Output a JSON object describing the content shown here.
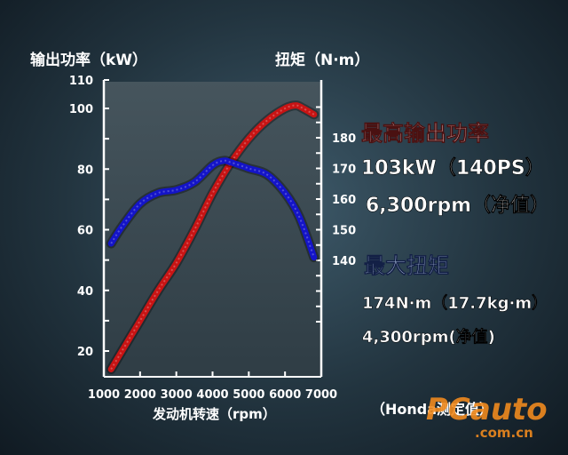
{
  "chart_data": {
    "type": "line",
    "title": "",
    "xlabel": "发动机转速（rpm）",
    "ylabel_left": "输出功率（kW）",
    "ylabel_right": "扭矩（N·m）",
    "xlim": [
      1000,
      7000
    ],
    "ylim_left": [
      10,
      110
    ],
    "ylim_right": [
      120,
      190
    ],
    "x_ticks": [
      1000,
      2000,
      3000,
      4000,
      5000,
      6000,
      7000
    ],
    "y_left_ticks": [
      20,
      40,
      60,
      80,
      100,
      110
    ],
    "y_right_ticks": [
      140,
      150,
      160,
      170,
      180
    ],
    "grid": false,
    "series": [
      {
        "axis": "left",
        "color": "#c81414",
        "x": [
          1200,
          1500,
          2000,
          2500,
          3000,
          3500,
          4000,
          4500,
          5000,
          5500,
          6000,
          6300,
          6500,
          6800
        ],
        "values": [
          14,
          20,
          30,
          40,
          49,
          60,
          72,
          82,
          90,
          96,
          100,
          101,
          100,
          98
        ]
      },
      {
        "axis": "right",
        "color": "#1414c8",
        "x": [
          1200,
          1500,
          2000,
          2500,
          3000,
          3500,
          4000,
          4300,
          4500,
          5000,
          5500,
          6000,
          6400,
          6800
        ],
        "values": [
          145.5,
          151,
          158.5,
          162,
          163,
          165.5,
          171,
          172.5,
          172,
          170,
          168,
          162,
          154,
          141
        ]
      }
    ]
  },
  "specs": {
    "power_heading": "最高输出功率",
    "power_value": "103kW（140PS）",
    "power_rpm": "6,300rpm（净值）",
    "torque_heading": "最大扭矩",
    "torque_value": "174N·m（17.7kg·m）",
    "torque_rpm": "4,300rpm(净值)"
  },
  "source_note": "（Honda测定值）",
  "watermark": {
    "main": "PCauto",
    "sub": ".com.cn"
  }
}
